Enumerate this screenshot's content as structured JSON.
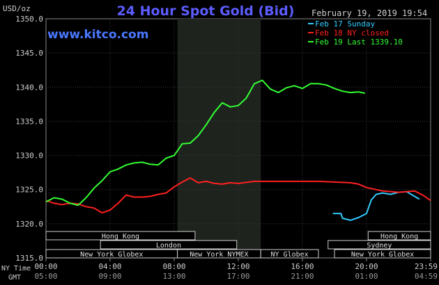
{
  "header": {
    "title": "24 Hour Spot Gold (Bid)",
    "unit": "USD/oz",
    "timestamp": "February 19, 2019 19:54",
    "watermark": "www.kitco.com"
  },
  "legend": [
    {
      "label": "Feb 17 Sunday",
      "color": "#33ccff"
    },
    {
      "label": "Feb 18 NY closed",
      "color": "#ff2020"
    },
    {
      "label": "Feb 19 Last 1339.10",
      "color": "#33ff33"
    }
  ],
  "footer": {
    "ny_time_label": "NY Time",
    "gmt_label": "GMT",
    "ny_ticks": [
      "00:00",
      "04:00",
      "08:00",
      "12:00",
      "16:00",
      "20:00",
      "23:59"
    ],
    "gmt_ticks": [
      "05:00",
      "09:00",
      "13:00",
      "17:00",
      "21:00",
      "01:00",
      "04:59"
    ]
  },
  "sessions": [
    {
      "label": "Hong Kong",
      "start": 0,
      "end": 9.3
    },
    {
      "label": "Hong Kong",
      "start": 20.1,
      "end": 24
    },
    {
      "label": "London",
      "start": 3.4,
      "end": 11.9
    },
    {
      "label": "Sydney",
      "start": 17.6,
      "end": 24
    },
    {
      "label": "New York Globex",
      "start": 0,
      "end": 8.2
    },
    {
      "label": "New York NYMEX",
      "start": 8.2,
      "end": 13.4
    },
    {
      "label": "NY Globex",
      "start": 13.4,
      "end": 17
    },
    {
      "label": "New York Globex",
      "start": 18,
      "end": 24
    }
  ],
  "chart_data": {
    "type": "line",
    "title": "24 Hour Spot Gold (Bid)",
    "ylabel": "USD/oz",
    "ylim": [
      1315,
      1350
    ],
    "xlim": [
      0,
      24
    ],
    "yticks": [
      1315,
      1320,
      1325,
      1330,
      1335,
      1340,
      1345,
      1350
    ],
    "x_tick_labels": [
      "00:00",
      "04:00",
      "08:00",
      "12:00",
      "16:00",
      "20:00",
      "23:59"
    ],
    "grid": true,
    "shaded_hours": [
      8.2,
      13.4
    ],
    "series": [
      {
        "name": "Feb 17 Sunday",
        "color": "#33ccff",
        "x": [
          17.9,
          18.4,
          18.5,
          19,
          19.5,
          20,
          20.3,
          20.6,
          21,
          21.5,
          22,
          22.5,
          23,
          23.3
        ],
        "y": [
          1321.5,
          1321.5,
          1320.8,
          1320.5,
          1320.9,
          1321.5,
          1323.5,
          1324.3,
          1324.5,
          1324.3,
          1324.6,
          1324.7,
          1324.0,
          1323.6
        ]
      },
      {
        "name": "Feb 18 NY closed",
        "color": "#ff2020",
        "x": [
          0,
          0.5,
          1,
          1.5,
          2,
          2.5,
          3,
          3.5,
          4,
          4.5,
          5,
          5.5,
          6,
          6.5,
          7,
          7.5,
          8,
          8.5,
          9,
          9.5,
          10,
          10.5,
          11,
          11.5,
          12,
          13,
          14,
          15,
          16,
          17,
          18,
          19,
          19.5,
          20,
          21,
          22,
          23,
          23.5,
          24
        ],
        "y": [
          1323.4,
          1323.0,
          1322.8,
          1323.0,
          1322.9,
          1322.5,
          1322.3,
          1321.6,
          1322.0,
          1323.0,
          1324.2,
          1323.9,
          1323.9,
          1324.0,
          1324.3,
          1324.5,
          1325.4,
          1326.1,
          1326.7,
          1326.0,
          1326.2,
          1325.9,
          1325.8,
          1326.0,
          1325.9,
          1326.2,
          1326.2,
          1326.2,
          1326.2,
          1326.2,
          1326.1,
          1326.0,
          1325.8,
          1325.3,
          1324.8,
          1324.6,
          1324.8,
          1324.2,
          1323.4
        ]
      },
      {
        "name": "Feb 19 Last 1339.10",
        "color": "#33ff33",
        "x": [
          0,
          0.5,
          1,
          1.5,
          2,
          2.5,
          3,
          3.5,
          4,
          4.5,
          5,
          5.5,
          6,
          6.5,
          7,
          7.5,
          8,
          8.5,
          9,
          9.5,
          10,
          10.5,
          11,
          11.5,
          12,
          12.5,
          13,
          13.5,
          14,
          14.5,
          15,
          15.5,
          16,
          16.5,
          17,
          17.5,
          18,
          18.5,
          19,
          19.5,
          19.9
        ],
        "y": [
          1323.2,
          1323.8,
          1323.6,
          1323.0,
          1322.7,
          1323.8,
          1325.2,
          1326.3,
          1327.6,
          1328.0,
          1328.6,
          1328.9,
          1329.0,
          1328.7,
          1328.6,
          1329.6,
          1330.0,
          1331.7,
          1331.8,
          1332.9,
          1334.5,
          1336.3,
          1337.7,
          1337.1,
          1337.3,
          1338.4,
          1340.5,
          1341.0,
          1339.7,
          1339.2,
          1339.9,
          1340.2,
          1339.8,
          1340.5,
          1340.5,
          1340.3,
          1339.8,
          1339.4,
          1339.2,
          1339.3,
          1339.1
        ]
      }
    ]
  }
}
